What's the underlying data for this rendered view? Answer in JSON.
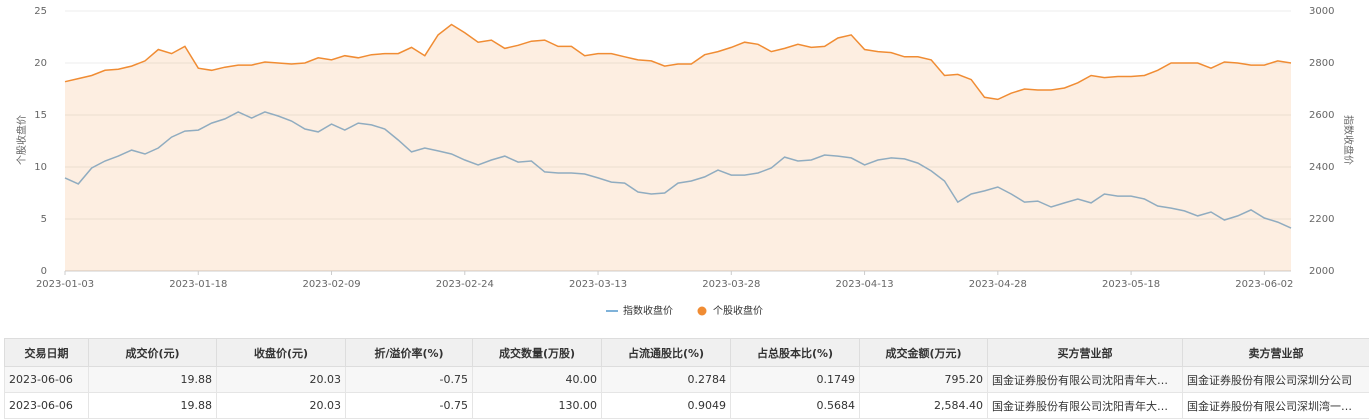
{
  "chart_data": {
    "type": "line",
    "categories": [
      "2023-01-03",
      null,
      null,
      null,
      null,
      null,
      null,
      null,
      null,
      null,
      "2023-01-18",
      null,
      null,
      null,
      null,
      null,
      null,
      null,
      null,
      null,
      "2023-02-09",
      null,
      null,
      null,
      null,
      null,
      null,
      null,
      null,
      null,
      "2023-02-24",
      null,
      null,
      null,
      null,
      null,
      null,
      null,
      null,
      null,
      "2023-03-13",
      null,
      null,
      null,
      null,
      null,
      null,
      null,
      null,
      null,
      "2023-03-28",
      null,
      null,
      null,
      null,
      null,
      null,
      null,
      null,
      null,
      "2023-04-13",
      null,
      null,
      null,
      null,
      null,
      null,
      null,
      null,
      null,
      "2023-04-28",
      null,
      null,
      null,
      null,
      null,
      null,
      null,
      null,
      null,
      "2023-05-18",
      null,
      null,
      null,
      null,
      null,
      null,
      null,
      null,
      null,
      "2023-06-02",
      null,
      null
    ],
    "ylabel": "个股收盘价",
    "y2label": "指数收盘价",
    "ylim": [
      0,
      25
    ],
    "yticks": [
      0,
      5,
      10,
      15,
      20,
      25
    ],
    "y2lim": [
      2000,
      3000
    ],
    "y2ticks": [
      2000,
      2200,
      2400,
      2600,
      2800,
      3000
    ],
    "grid": true,
    "legend": "bottom",
    "series": [
      {
        "name": "指数收盘价",
        "color": "#7fb2d9",
        "axis": "y2",
        "marker": "line",
        "values": [
          2358,
          2335,
          2396,
          2423,
          2442,
          2465,
          2450,
          2473,
          2515,
          2538,
          2542,
          2569,
          2585,
          2612,
          2588,
          2612,
          2596,
          2577,
          2546,
          2535,
          2565,
          2542,
          2569,
          2562,
          2546,
          2504,
          2458,
          2473,
          2462,
          2450,
          2427,
          2408,
          2427,
          2442,
          2419,
          2423,
          2381,
          2377,
          2377,
          2373,
          2358,
          2342,
          2338,
          2304,
          2296,
          2300,
          2338,
          2346,
          2362,
          2388,
          2369,
          2369,
          2377,
          2396,
          2438,
          2423,
          2427,
          2446,
          2442,
          2435,
          2408,
          2427,
          2435,
          2431,
          2415,
          2385,
          2346,
          2265,
          2296,
          2308,
          2323,
          2296,
          2265,
          2269,
          2246,
          2262,
          2277,
          2262,
          2296,
          2288,
          2288,
          2277,
          2250,
          2242,
          2231,
          2212,
          2227,
          2196,
          2212,
          2235,
          2204,
          2188,
          2165
        ]
      },
      {
        "name": "个股收盘价",
        "color": "#f08c33",
        "area": true,
        "marker": "circle",
        "values": [
          18.2,
          18.5,
          18.8,
          19.3,
          19.4,
          19.7,
          20.2,
          21.3,
          20.9,
          21.6,
          19.5,
          19.3,
          19.6,
          19.8,
          19.8,
          20.1,
          20.0,
          19.9,
          20.0,
          20.5,
          20.3,
          20.7,
          20.5,
          20.8,
          20.9,
          20.9,
          21.5,
          20.7,
          22.7,
          23.7,
          22.9,
          22.0,
          22.2,
          21.4,
          21.7,
          22.1,
          22.2,
          21.6,
          21.6,
          20.7,
          20.9,
          20.9,
          20.6,
          20.3,
          20.2,
          19.7,
          19.9,
          19.9,
          20.8,
          21.1,
          21.5,
          22.0,
          21.8,
          21.1,
          21.4,
          21.8,
          21.5,
          21.6,
          22.4,
          22.7,
          21.3,
          21.1,
          21.0,
          20.6,
          20.6,
          20.3,
          18.8,
          18.9,
          18.4,
          16.7,
          16.5,
          17.1,
          17.5,
          17.4,
          17.4,
          17.6,
          18.1,
          18.8,
          18.6,
          18.7,
          18.7,
          18.8,
          19.3,
          20.0,
          20.0,
          20.0,
          19.5,
          20.1,
          20.0,
          19.8,
          19.8,
          20.2,
          20.0
        ]
      }
    ]
  },
  "table": {
    "headers": [
      "交易日期",
      "成交价(元)",
      "收盘价(元)",
      "折/溢价率(%)",
      "成交数量(万股)",
      "占流通股比(%)",
      "占总股本比(%)",
      "成交金额(万元)",
      "买方营业部",
      "卖方营业部"
    ],
    "rows": [
      [
        "2023-06-06",
        "19.88",
        "20.03",
        "-0.75",
        "40.00",
        "0.2784",
        "0.1749",
        "795.20",
        "国金证券股份有限公司沈阳青年大…",
        "国金证券股份有限公司深圳分公司"
      ],
      [
        "2023-06-06",
        "19.88",
        "20.03",
        "-0.75",
        "130.00",
        "0.9049",
        "0.5684",
        "2,584.40",
        "国金证券股份有限公司沈阳青年大…",
        "国金证券股份有限公司深圳湾一…"
      ]
    ]
  }
}
